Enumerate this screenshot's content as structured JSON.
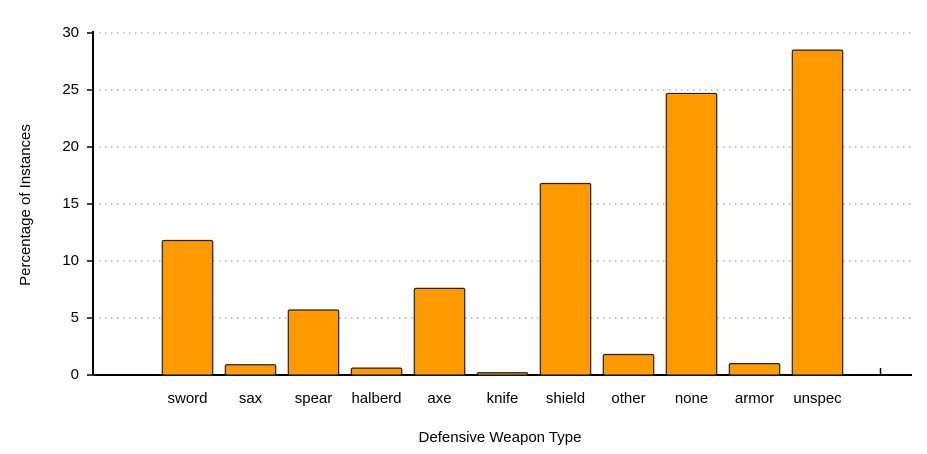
{
  "chart_data": {
    "type": "bar",
    "xlabel": "Defensive Weapon Type",
    "ylabel": "Percentage of Instances",
    "categories": [
      "sword",
      "sax",
      "spear",
      "halberd",
      "axe",
      "knife",
      "shield",
      "other",
      "none",
      "armor",
      "unspec"
    ],
    "values": [
      11.8,
      0.9,
      5.7,
      0.6,
      7.6,
      0.2,
      16.8,
      1.8,
      24.7,
      1.0,
      28.5
    ],
    "color": "#ff9900",
    "ylim": [
      0,
      30
    ],
    "yticks": [
      0,
      5,
      10,
      15,
      20,
      25,
      30
    ],
    "grid": true
  }
}
